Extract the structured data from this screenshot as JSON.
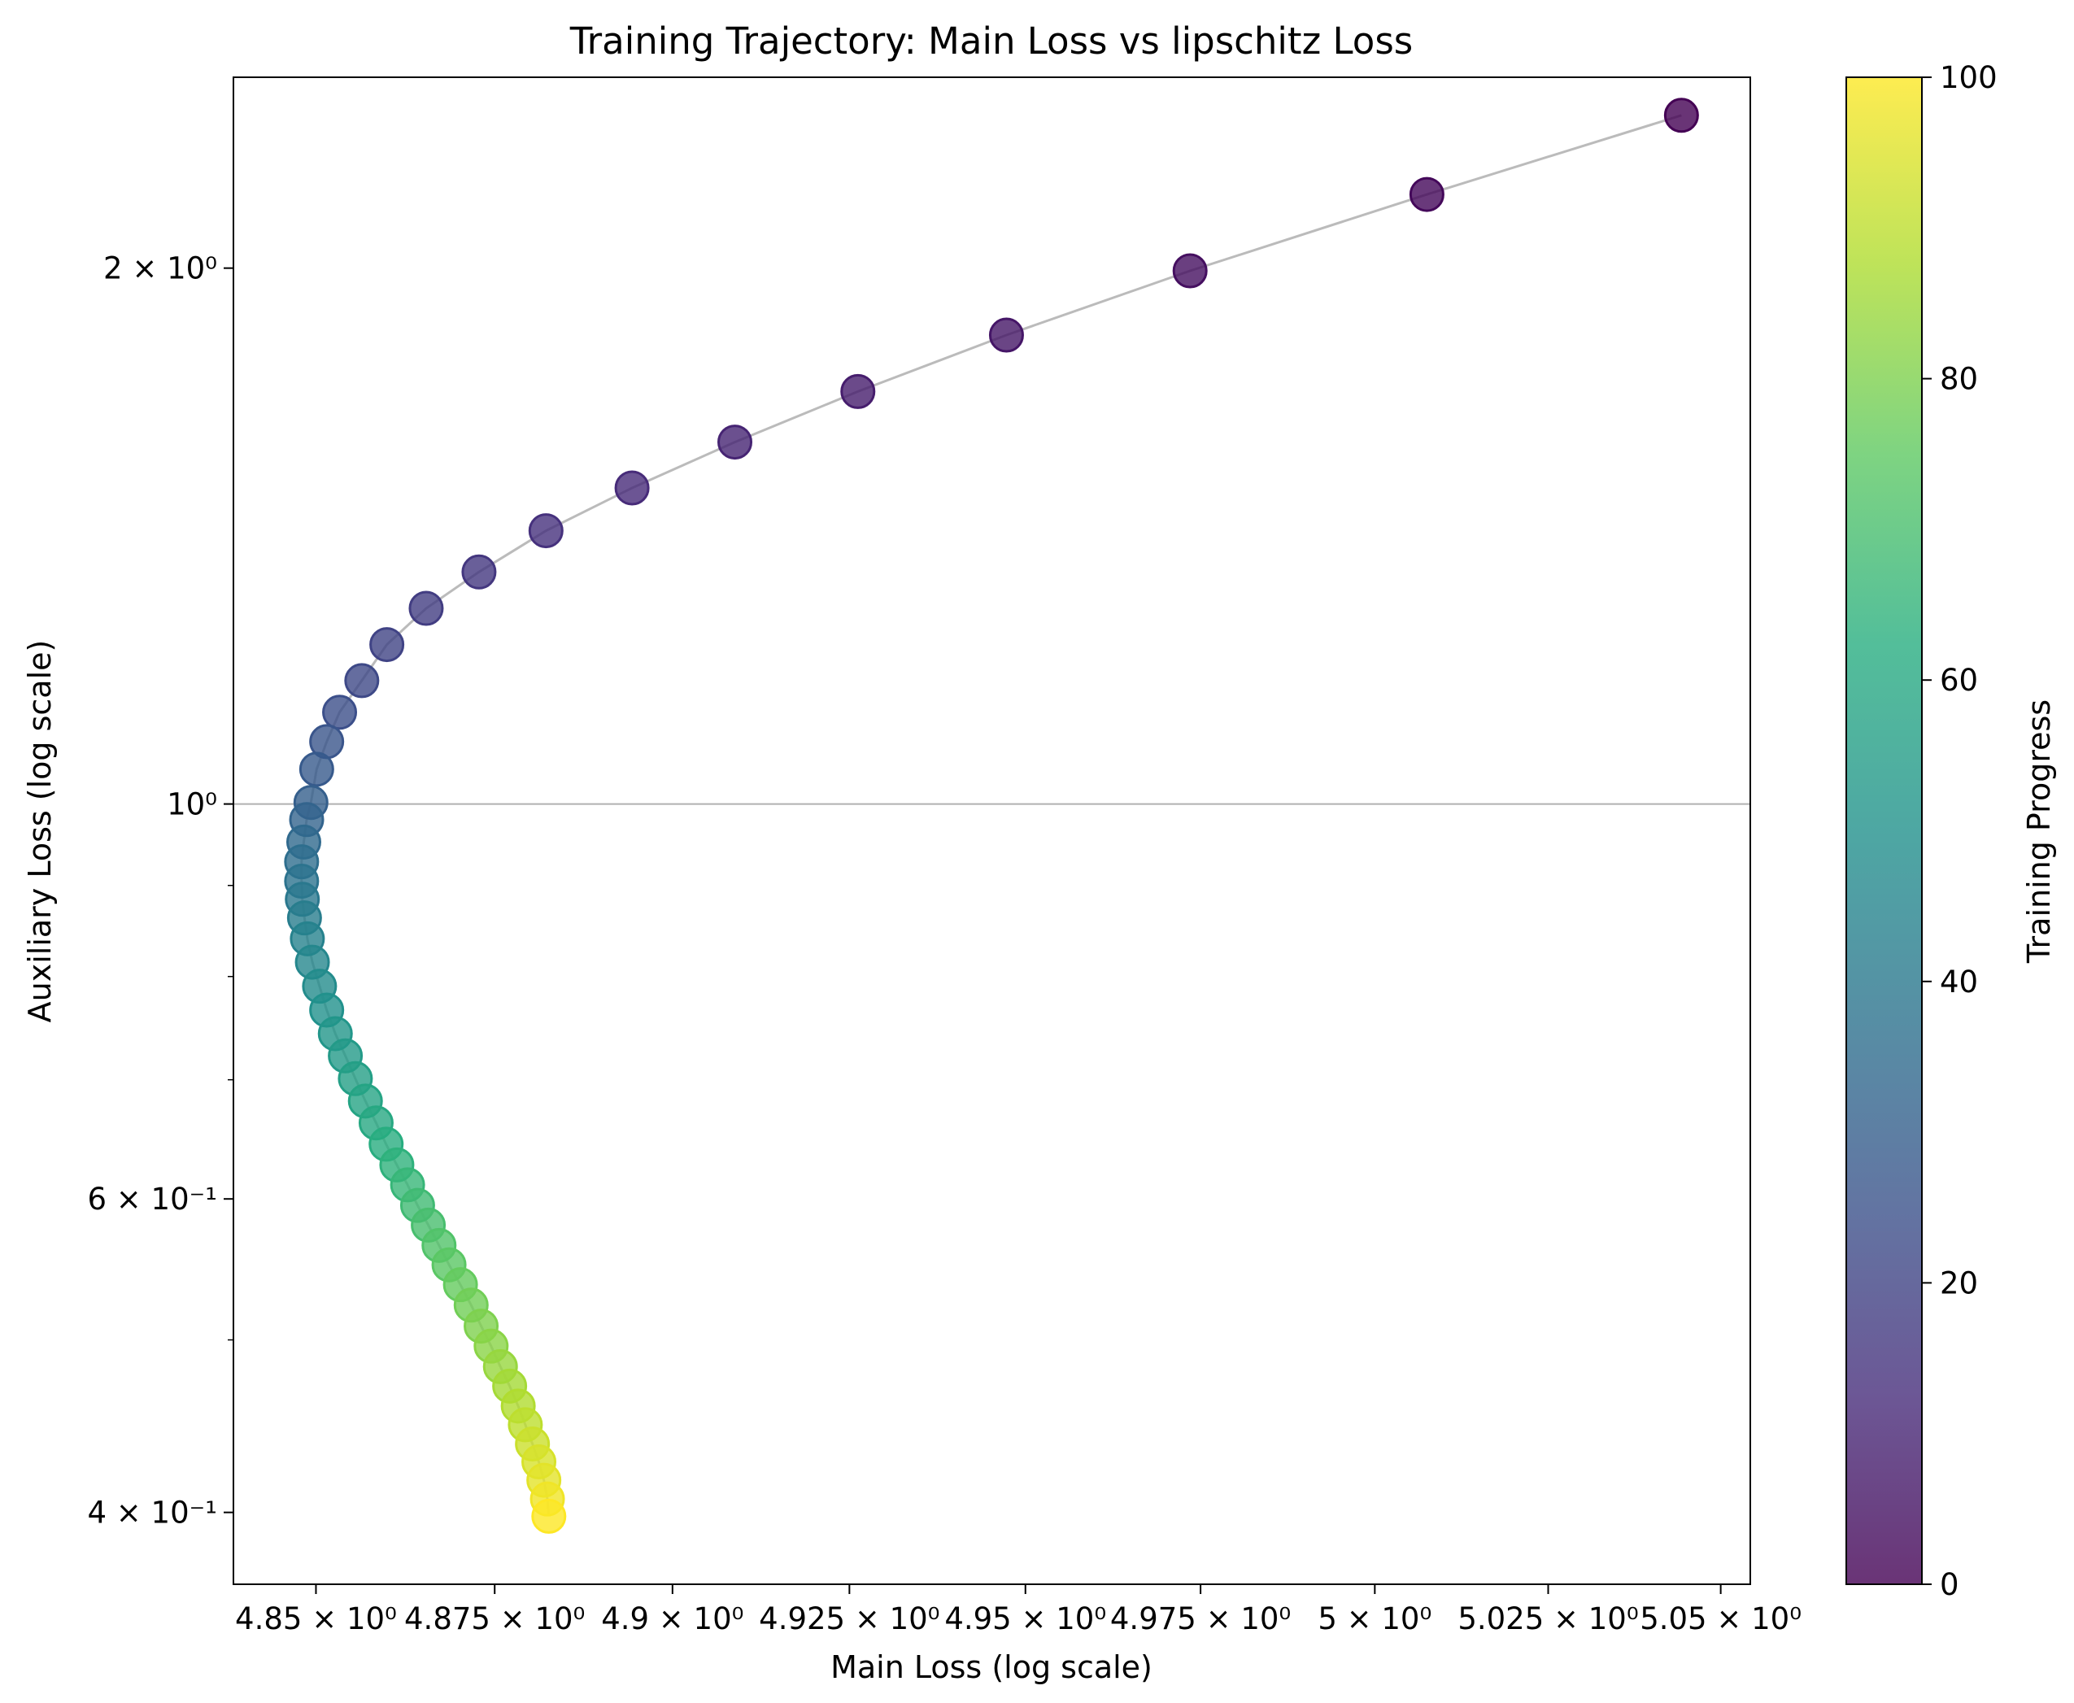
{
  "chart_data": {
    "type": "scatter",
    "title": "Training Trajectory: Main Loss vs lipschitz Loss",
    "xlabel": "Main Loss (log scale)",
    "ylabel": "Auxiliary Loss (log scale)",
    "xscale": "log",
    "yscale": "log",
    "xlim": [
      4.8385,
      5.0543
    ],
    "ylim": [
      0.3645,
      2.56
    ],
    "grid": "horizontal line at y = 1",
    "x_ticks": [
      {
        "value": 4.85,
        "label": "4.85 × 10⁰"
      },
      {
        "value": 4.875,
        "label": "4.875 × 10⁰"
      },
      {
        "value": 4.9,
        "label": "4.9 × 10⁰"
      },
      {
        "value": 4.925,
        "label": "4.925 × 10⁰"
      },
      {
        "value": 4.95,
        "label": "4.95 × 10⁰"
      },
      {
        "value": 4.975,
        "label": "4.975 × 10⁰"
      },
      {
        "value": 5.0,
        "label": "5 × 10⁰"
      },
      {
        "value": 5.025,
        "label": "5.025 × 10⁰"
      },
      {
        "value": 5.05,
        "label": "5.05 × 10⁰"
      }
    ],
    "y_ticks": [
      {
        "value": 0.4,
        "label": "4 × 10⁻¹"
      },
      {
        "value": 0.6,
        "label": "6 × 10⁻¹"
      },
      {
        "value": 1.0,
        "label": "10⁰"
      },
      {
        "value": 2.0,
        "label": "2 × 10⁰"
      }
    ],
    "y_minor_ticks": [
      0.5,
      0.7,
      0.8,
      0.9
    ],
    "colorbar": {
      "label": "Training Progress",
      "colormap": "viridis",
      "range": [
        0,
        100
      ],
      "ticks": [
        "0",
        "20",
        "40",
        "60",
        "80",
        "100"
      ]
    },
    "trajectory_color": "#bbbbbb",
    "series": {
      "x": [
        5.0443,
        5.0075,
        4.9735,
        4.9473,
        4.9262,
        4.9088,
        4.8943,
        4.8822,
        4.8728,
        4.8654,
        4.8599,
        4.8564,
        4.8533,
        4.8515,
        4.8501,
        4.8493,
        4.8487,
        4.8483,
        4.848,
        4.848,
        4.8481,
        4.8484,
        4.8488,
        4.8495,
        4.8505,
        4.8515,
        4.8527,
        4.8541,
        4.8555,
        4.8569,
        4.8584,
        4.8598,
        4.8613,
        4.8628,
        4.8642,
        4.8657,
        4.8672,
        4.8686,
        4.8702,
        4.8717,
        4.8731,
        4.8745,
        4.8758,
        4.8771,
        4.8783,
        4.8793,
        4.8803,
        4.8812,
        4.8819,
        4.8824,
        4.8826
      ],
      "y": [
        2.437,
        2.2,
        1.993,
        1.834,
        1.705,
        1.597,
        1.505,
        1.424,
        1.35,
        1.288,
        1.229,
        1.173,
        1.126,
        1.084,
        1.046,
        1.002,
        0.98,
        0.952,
        0.928,
        0.905,
        0.884,
        0.863,
        0.84,
        0.815,
        0.79,
        0.766,
        0.743,
        0.722,
        0.701,
        0.681,
        0.662,
        0.644,
        0.627,
        0.611,
        0.595,
        0.58,
        0.565,
        0.551,
        0.537,
        0.523,
        0.509,
        0.496,
        0.483,
        0.471,
        0.459,
        0.448,
        0.437,
        0.427,
        0.417,
        0.407,
        0.398
      ],
      "progress": [
        0,
        2,
        4,
        6,
        8,
        10,
        12,
        14,
        16,
        18,
        20,
        22,
        24,
        26,
        28,
        30,
        32,
        34,
        36,
        38,
        40,
        42,
        44,
        46,
        48,
        50,
        52,
        54,
        56,
        58,
        60,
        62,
        64,
        66,
        68,
        70,
        72,
        74,
        76,
        78,
        80,
        82,
        84,
        86,
        88,
        90,
        92,
        94,
        96,
        98,
        100
      ]
    }
  }
}
